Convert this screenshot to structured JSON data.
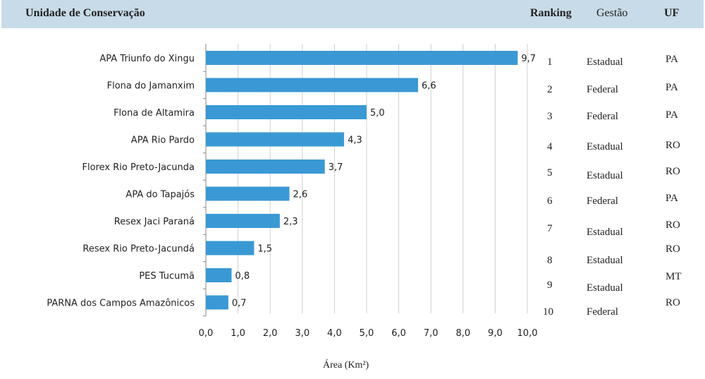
{
  "header": {
    "unit_label": "Unidade  de Conservação",
    "ranking_label": "Ranking",
    "gestao_label": "Gestão",
    "uf_label": "UF"
  },
  "chart_data": {
    "type": "bar",
    "orientation": "horizontal",
    "title": "",
    "xlabel": "Área (Km²)",
    "ylabel": "",
    "xlim": [
      0,
      10
    ],
    "xticks": [
      "0,0",
      "1,0",
      "2,0",
      "3,0",
      "4,0",
      "5,0",
      "6,0",
      "7,0",
      "8,0",
      "9,0",
      "10,0"
    ],
    "grid": "vertical",
    "color": "#3a99d4",
    "categories": [
      "APA Triunfo do Xingu",
      "Flona do Jamanxim",
      "Flona de Altamira",
      "APA Rio Pardo",
      "Florex Rio Preto-Jacunda",
      "APA do Tapajós",
      "Resex Jaci Paraná",
      "Resex Rio Preto-Jacundá",
      "PES Tucumã",
      "PARNA dos Campos Amazônicos"
    ],
    "values": [
      9.7,
      6.6,
      5.0,
      4.3,
      3.7,
      2.6,
      2.3,
      1.5,
      0.8,
      0.7
    ],
    "value_labels": [
      "9,7",
      "6,6",
      "5,0",
      "4,3",
      "3,7",
      "2,6",
      "2,3",
      "1,5",
      "0,8",
      "0,7"
    ]
  },
  "ranking": [
    "1",
    "2",
    "3",
    "4",
    "5",
    "6",
    "7",
    "8",
    "9",
    "10"
  ],
  "gestao": [
    "Estadual",
    "Federal",
    "Federal",
    "Estadual",
    "Estadual",
    "Federal",
    "Estadual",
    "Estadual",
    "Estadual",
    "Federal"
  ],
  "uf": [
    "PA",
    "PA",
    "PA",
    "RO",
    "RO",
    "PA",
    "RO",
    "RO",
    "MT",
    "RO"
  ]
}
